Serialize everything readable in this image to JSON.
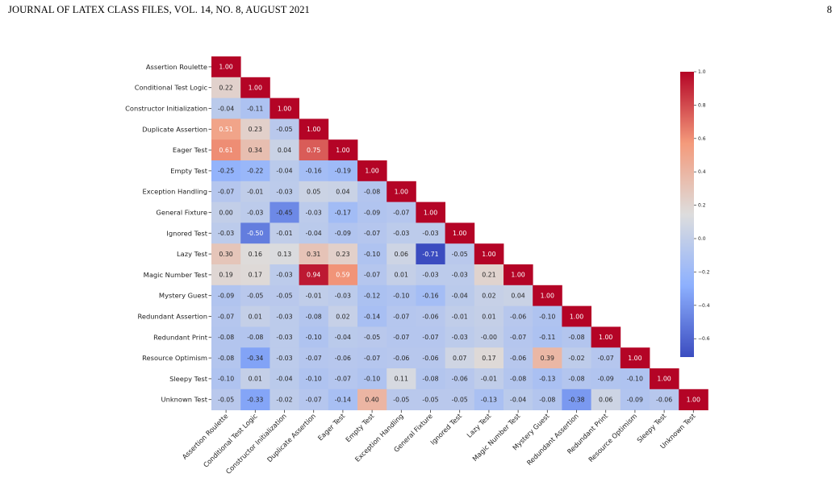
{
  "header": {
    "running_head": "JOURNAL OF LATEX CLASS FILES, VOL. 14, NO. 8, AUGUST 2021",
    "page_number": "8"
  },
  "chart_data": {
    "type": "heatmap",
    "title": "",
    "xlabel": "",
    "ylabel": "",
    "labels": [
      "Assertion Roulette",
      "Conditional Test Logic",
      "Constructor Initialization",
      "Duplicate Assertion",
      "Eager Test",
      "Empty Test",
      "Exception Handling",
      "General Fixture",
      "Ignored Test",
      "Lazy Test",
      "Magic Number Test",
      "Mystery Guest",
      "Redundant Assertion",
      "Redundant Print",
      "Resource Optimism",
      "Sleepy Test",
      "Unknown Test"
    ],
    "display_labels": [
      "1.00",
      "0.22",
      "1.00",
      "-0.04",
      "-0.11",
      "1.00",
      "0.51",
      "0.23",
      "-0.05",
      "1.00",
      "0.61",
      "0.34",
      "0.04",
      "0.75",
      "1.00",
      "-0.25",
      "-0.22",
      "-0.04",
      "-0.16",
      "-0.19",
      "1.00",
      "-0.07",
      "-0.01",
      "-0.03",
      "0.05",
      "0.04",
      "-0.08",
      "1.00",
      "0.00",
      "-0.03",
      "-0.45",
      "-0.03",
      "-0.17",
      "-0.09",
      "-0.07",
      "1.00",
      "-0.03",
      "-0.50",
      "-0.01",
      "-0.04",
      "-0.09",
      "-0.07",
      "-0.03",
      "-0.03",
      "1.00",
      "0.30",
      "0.16",
      "0.13",
      "0.31",
      "0.23",
      "-0.10",
      "0.06",
      "-0.71",
      "-0.05",
      "1.00",
      "0.19",
      "0.17",
      "-0.03",
      "0.94",
      "0.59",
      "-0.07",
      "0.01",
      "-0.03",
      "-0.03",
      "0.21",
      "1.00",
      "-0.09",
      "-0.05",
      "-0.05",
      "-0.01",
      "-0.03",
      "-0.12",
      "-0.10",
      "-0.16",
      "-0.04",
      "0.02",
      "0.04",
      "1.00",
      "-0.07",
      "0.01",
      "-0.03",
      "-0.08",
      "0.02",
      "-0.14",
      "-0.07",
      "-0.06",
      "-0.01",
      "0.01",
      "-0.06",
      "-0.10",
      "1.00",
      "-0.08",
      "-0.08",
      "-0.03",
      "-0.10",
      "-0.04",
      "-0.05",
      "-0.07",
      "-0.07",
      "-0.03",
      "-0.00",
      "-0.07",
      "-0.11",
      "-0.08",
      "1.00",
      "-0.08",
      "-0.34",
      "-0.03",
      "-0.07",
      "-0.06",
      "-0.07",
      "-0.06",
      "-0.06",
      "0.07",
      "0.17",
      "-0.06",
      "0.39",
      "-0.02",
      "-0.07",
      "1.00",
      "-0.10",
      "0.01",
      "-0.04",
      "-0.10",
      "-0.07",
      "-0.10",
      "0.11",
      "-0.08",
      "-0.06",
      "-0.01",
      "-0.08",
      "-0.13",
      "-0.08",
      "-0.09",
      "-0.10",
      "1.00",
      "-0.05",
      "-0.33",
      "-0.02",
      "-0.07",
      "-0.14",
      "0.40",
      "-0.05",
      "-0.05",
      "-0.05",
      "-0.13",
      "-0.04",
      "-0.08",
      "-0.38",
      "0.06",
      "-0.09",
      "-0.06",
      "1.00"
    ],
    "matrix": [
      [
        1.0
      ],
      [
        0.22,
        1.0
      ],
      [
        -0.04,
        -0.11,
        1.0
      ],
      [
        0.51,
        0.23,
        -0.05,
        1.0
      ],
      [
        0.61,
        0.34,
        0.04,
        0.75,
        1.0
      ],
      [
        -0.25,
        -0.22,
        -0.04,
        -0.16,
        -0.19,
        1.0
      ],
      [
        -0.07,
        -0.01,
        -0.03,
        0.05,
        0.04,
        -0.08,
        1.0
      ],
      [
        0.0,
        -0.03,
        -0.45,
        -0.03,
        -0.17,
        -0.09,
        -0.07,
        1.0
      ],
      [
        -0.03,
        -0.5,
        -0.01,
        -0.04,
        -0.09,
        -0.07,
        -0.03,
        -0.03,
        1.0
      ],
      [
        0.3,
        0.16,
        0.13,
        0.31,
        0.23,
        -0.1,
        0.06,
        -0.71,
        -0.05,
        1.0
      ],
      [
        0.19,
        0.17,
        -0.03,
        0.94,
        0.59,
        -0.07,
        0.01,
        -0.03,
        -0.03,
        0.21,
        1.0
      ],
      [
        -0.09,
        -0.05,
        -0.05,
        -0.01,
        -0.03,
        -0.12,
        -0.1,
        -0.16,
        -0.04,
        0.02,
        0.04,
        1.0
      ],
      [
        -0.07,
        0.01,
        -0.03,
        -0.08,
        0.02,
        -0.14,
        -0.07,
        -0.06,
        -0.01,
        0.01,
        -0.06,
        -0.1,
        1.0
      ],
      [
        -0.08,
        -0.08,
        -0.03,
        -0.1,
        -0.04,
        -0.05,
        -0.07,
        -0.07,
        -0.03,
        -0.0,
        -0.07,
        -0.11,
        -0.08,
        1.0
      ],
      [
        -0.08,
        -0.34,
        -0.03,
        -0.07,
        -0.06,
        -0.07,
        -0.06,
        -0.06,
        0.07,
        0.17,
        -0.06,
        0.39,
        -0.02,
        -0.07,
        1.0
      ],
      [
        -0.1,
        0.01,
        -0.04,
        -0.1,
        -0.07,
        -0.1,
        0.11,
        -0.08,
        -0.06,
        -0.01,
        -0.08,
        -0.13,
        -0.08,
        -0.09,
        -0.1,
        1.0
      ],
      [
        -0.05,
        -0.33,
        -0.02,
        -0.07,
        -0.14,
        0.4,
        -0.05,
        -0.05,
        -0.05,
        -0.13,
        -0.04,
        -0.08,
        -0.38,
        0.06,
        -0.09,
        -0.06,
        1.0
      ]
    ],
    "lower_triangle_only": true,
    "colormap": "coolwarm",
    "colormap_stops": [
      "#3b4cc0",
      "#8db0fe",
      "#dddddd",
      "#f49a7b",
      "#b40426"
    ],
    "vmin": -0.71,
    "vmax": 1.0,
    "colorbar": {
      "ticks": [
        1.0,
        0.8,
        0.6,
        0.4,
        0.2,
        0.0,
        -0.2,
        -0.4,
        -0.6
      ],
      "tick_labels": [
        "1.0",
        "0.8",
        "0.6",
        "0.4",
        "0.2",
        "0.0",
        "−0.2",
        "−0.4",
        "−0.6"
      ],
      "placement": "right"
    },
    "grid": false
  }
}
